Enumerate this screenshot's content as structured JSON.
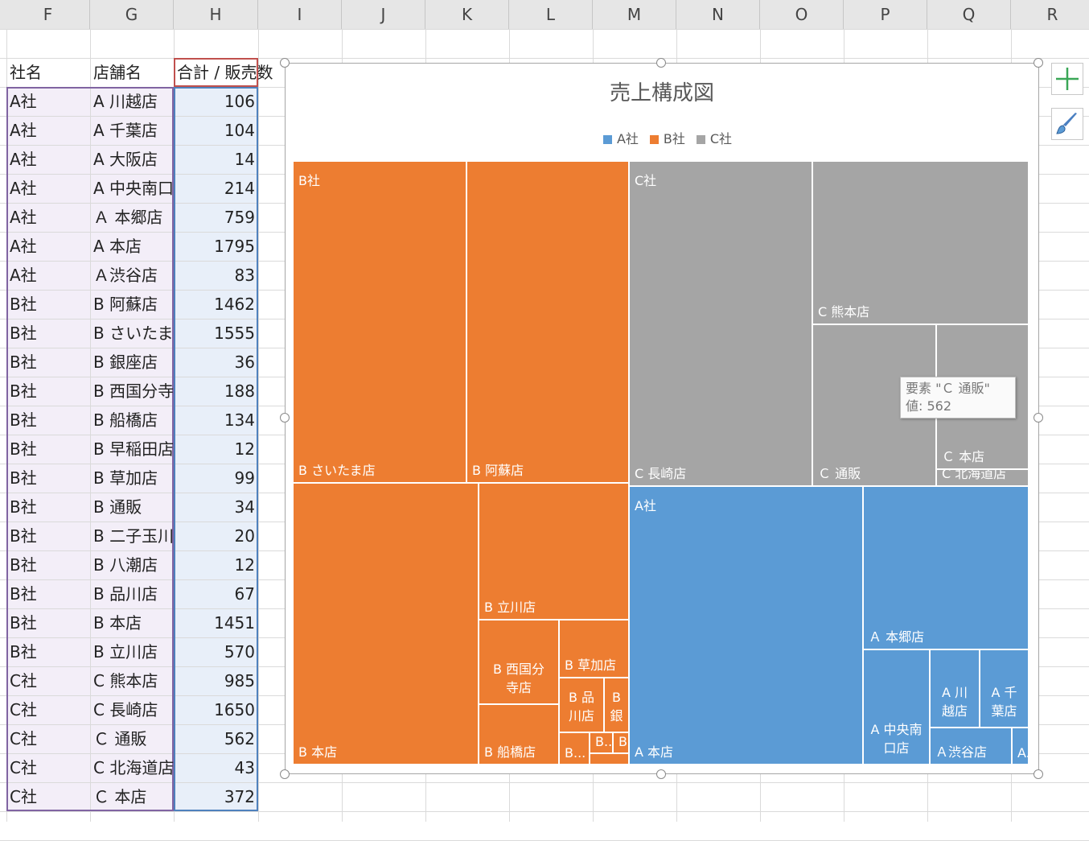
{
  "columns": [
    "F",
    "G",
    "H",
    "I",
    "J",
    "K",
    "L",
    "M",
    "N",
    "O",
    "P",
    "Q",
    "R"
  ],
  "table": {
    "headers": [
      "社名",
      "店舗名",
      "合計 / 販売数"
    ],
    "rows": [
      [
        "A社",
        "A 川越店",
        "106"
      ],
      [
        "A社",
        "A 千葉店",
        "104"
      ],
      [
        "A社",
        "A 大阪店",
        "14"
      ],
      [
        "A社",
        "A 中央南口",
        "214"
      ],
      [
        "A社",
        "Ａ 本郷店",
        "759"
      ],
      [
        "A社",
        "A 本店",
        "1795"
      ],
      [
        "A社",
        "Ａ渋谷店",
        "83"
      ],
      [
        "B社",
        "B 阿蘇店",
        "1462"
      ],
      [
        "B社",
        "B さいたま",
        "1555"
      ],
      [
        "B社",
        "B 銀座店",
        "36"
      ],
      [
        "B社",
        "B 西国分寺",
        "188"
      ],
      [
        "B社",
        "B 船橋店",
        "134"
      ],
      [
        "B社",
        "B 早稲田店",
        "12"
      ],
      [
        "B社",
        "B 草加店",
        "99"
      ],
      [
        "B社",
        "B 通販",
        "34"
      ],
      [
        "B社",
        "B 二子玉川",
        "20"
      ],
      [
        "B社",
        "B 八潮店",
        "12"
      ],
      [
        "B社",
        "B 品川店",
        "67"
      ],
      [
        "B社",
        "B 本店",
        "1451"
      ],
      [
        "B社",
        "B 立川店",
        "570"
      ],
      [
        "C社",
        "C 熊本店",
        "985"
      ],
      [
        "C社",
        "C 長崎店",
        "1650"
      ],
      [
        "C社",
        "Ｃ 通販",
        "562"
      ],
      [
        "C社",
        "C 北海道店",
        "43"
      ],
      [
        "C社",
        "Ｃ 本店",
        "372"
      ]
    ]
  },
  "chart_data": {
    "type": "treemap",
    "title": "売上構成図",
    "legend": [
      {
        "name": "A社",
        "color": "#5b9bd5"
      },
      {
        "name": "B社",
        "color": "#ed7d31"
      },
      {
        "name": "C社",
        "color": "#a5a5a5"
      }
    ],
    "groups": [
      {
        "name": "B社",
        "color": "#ed7d31",
        "items": [
          {
            "label": "B さいたま店",
            "value": 1555
          },
          {
            "label": "B 阿蘇店",
            "value": 1462
          },
          {
            "label": "B 本店",
            "value": 1451
          },
          {
            "label": "B 立川店",
            "value": 570
          },
          {
            "label": "B 西国分\n寺店",
            "value": 188
          },
          {
            "label": "B 草加店",
            "value": 99
          },
          {
            "label": "B 船橋店",
            "value": 134
          },
          {
            "label": "B 品\n川店",
            "value": 67
          },
          {
            "label": "B\n銀",
            "value": 36
          },
          {
            "label": "B...",
            "value": 34
          },
          {
            "label": "B...",
            "value": 20
          },
          {
            "label": "B...",
            "value": 12
          },
          {
            "label": "",
            "value": 12
          }
        ]
      },
      {
        "name": "C社",
        "color": "#a5a5a5",
        "items": [
          {
            "label": "C 長崎店",
            "value": 1650
          },
          {
            "label": "C 熊本店",
            "value": 985
          },
          {
            "label": "Ｃ 通販",
            "value": 562
          },
          {
            "label": "Ｃ 本店",
            "value": 372
          },
          {
            "label": "C 北海道店",
            "value": 43
          }
        ]
      },
      {
        "name": "A社",
        "color": "#5b9bd5",
        "items": [
          {
            "label": "A 本店",
            "value": 1795
          },
          {
            "label": "Ａ 本郷店",
            "value": 759
          },
          {
            "label": "A 中央南\n口店",
            "value": 214
          },
          {
            "label": "A 川\n越店",
            "value": 106
          },
          {
            "label": "A 千\n葉店",
            "value": 104
          },
          {
            "label": "Ａ渋谷店",
            "value": 83
          },
          {
            "label": "A...",
            "value": 14
          }
        ]
      }
    ],
    "tooltip": {
      "line1": "要素 \"Ｃ 通販\"",
      "line2": "値: 562"
    }
  }
}
